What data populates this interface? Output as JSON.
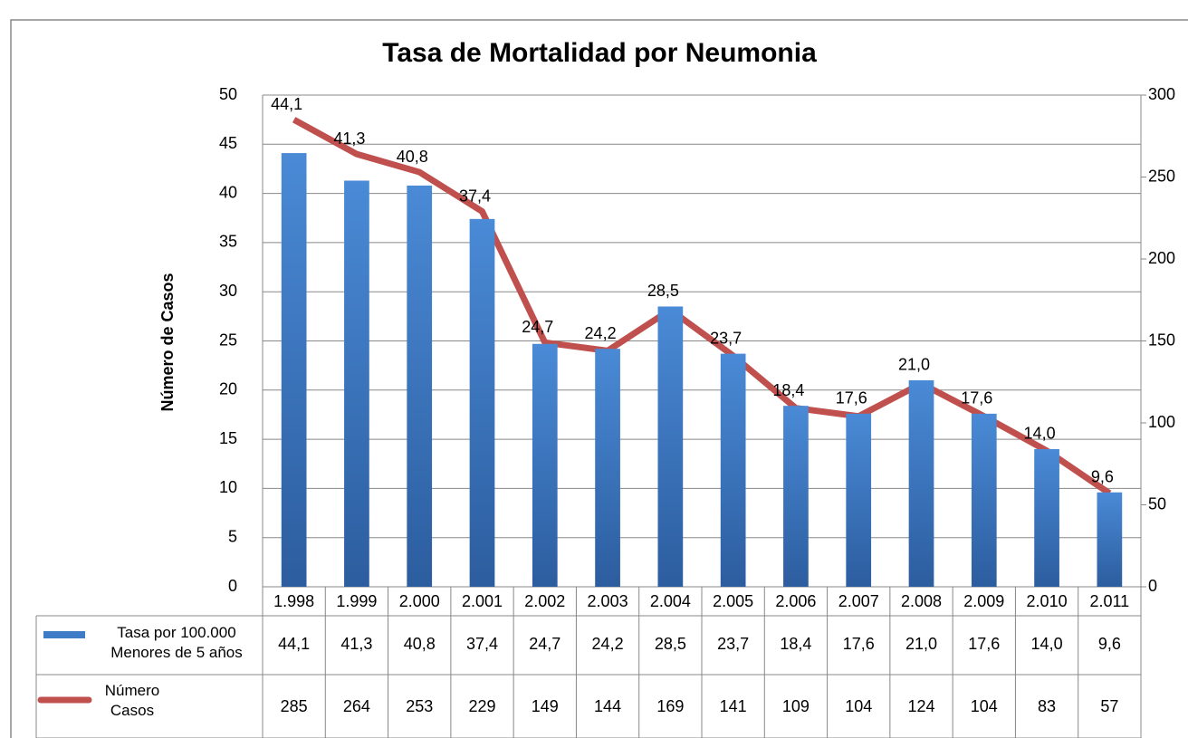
{
  "chart_data": {
    "type": "bar-line",
    "title": "Tasa de Mortalidad por Neumonia",
    "ylabel": "Número de Casos",
    "categories": [
      "1.998",
      "1.999",
      "2.000",
      "2.001",
      "2.002",
      "2.003",
      "2.004",
      "2.005",
      "2.006",
      "2.007",
      "2.008",
      "2.009",
      "2.010",
      "2.011"
    ],
    "series": [
      {
        "name": "Tasa por 100.000 Menores de 5 años",
        "color": "#3f7cc8",
        "type": "bar",
        "values": [
          44.1,
          41.3,
          40.8,
          37.4,
          24.7,
          24.2,
          28.5,
          23.7,
          18.4,
          17.6,
          21.0,
          17.6,
          14.0,
          9.6
        ],
        "value_labels": [
          "44,1",
          "41,3",
          "40,8",
          "37,4",
          "24,7",
          "24,2",
          "28,5",
          "23,7",
          "18,4",
          "17,6",
          "21,0",
          "17,6",
          "14,0",
          "9,6"
        ]
      },
      {
        "name": "Número Casos",
        "color": "#c0504d",
        "type": "line",
        "axis": "y2",
        "values": [
          285,
          264,
          253,
          229,
          149,
          144,
          169,
          141,
          109,
          104,
          124,
          104,
          83,
          57
        ]
      }
    ],
    "ylim": [
      0,
      50
    ],
    "yticks": [
      0,
      5,
      10,
      15,
      20,
      25,
      30,
      35,
      40,
      45,
      50
    ],
    "y2lim": [
      0,
      300
    ],
    "y2ticks": [
      0,
      50,
      100,
      150,
      200,
      250,
      300
    ],
    "grid": true,
    "data_table": true
  }
}
